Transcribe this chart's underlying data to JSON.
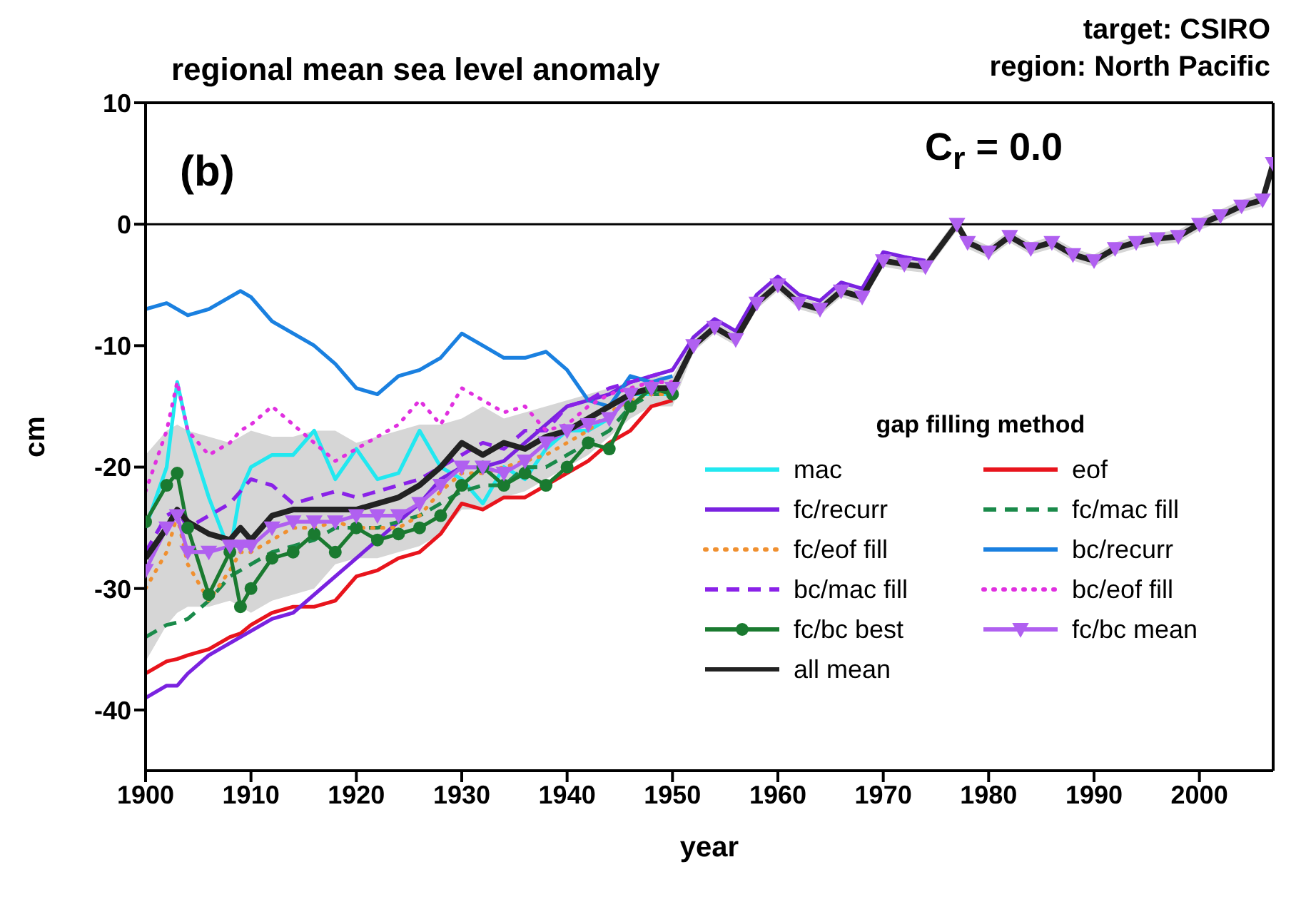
{
  "chart_data": {
    "type": "line",
    "title": "regional mean sea level anomaly",
    "xlabel": "year",
    "ylabel": "cm",
    "legend_title": "gap filling method",
    "legend": "bottom right",
    "annotations": [
      "target: CSIRO",
      "region: North Pacific",
      "(b)",
      "C$_{r}$ = 0.0"
    ],
    "x": [
      1900,
      1902,
      1903,
      1904,
      1906,
      1908,
      1909,
      1910,
      1912,
      1914,
      1916,
      1918,
      1920,
      1922,
      1924,
      1926,
      1928,
      1930,
      1932,
      1934,
      1936,
      1938,
      1940,
      1942,
      1944,
      1946,
      1948,
      1950,
      1952,
      1954,
      1956,
      1958,
      1960,
      1962,
      1964,
      1966,
      1968,
      1970,
      1972,
      1974,
      1977,
      1978,
      1980,
      1982,
      1984,
      1986,
      1988,
      1990,
      1992,
      1994,
      1996,
      1998,
      2000,
      2002,
      2004,
      2006,
      2007
    ],
    "xlim": [
      1900,
      2007
    ],
    "xticks": [
      1900,
      1910,
      1920,
      1930,
      1940,
      1950,
      1960,
      1970,
      1980,
      1990,
      2000
    ],
    "ylim": [
      -45,
      10
    ],
    "yticks": [
      -40,
      -30,
      -20,
      -10,
      0,
      10
    ],
    "ref_lines": [
      {
        "axis": "y",
        "value": 0,
        "color": "#000000"
      }
    ],
    "series": [
      {
        "name": "mac",
        "color": "#22e8f0",
        "line_style": "solid",
        "values": [
          -25,
          -20,
          -13,
          -17,
          -22.5,
          -27,
          -22,
          -20,
          -19,
          -19,
          -17,
          -21,
          -18.5,
          -21,
          -20.5,
          -17,
          -20,
          -21,
          -23,
          -20,
          -21,
          -18.5,
          -17,
          -17,
          -16,
          -14,
          -14,
          -14,
          null,
          null,
          null,
          null,
          null,
          null,
          null,
          null,
          null,
          null,
          null,
          null,
          null,
          null,
          null,
          null,
          null,
          null,
          null,
          null,
          null,
          null,
          null,
          null,
          null,
          null,
          null,
          null,
          null
        ]
      },
      {
        "name": "eof",
        "color": "#e8141c",
        "line_style": "solid",
        "values": [
          -37,
          -36,
          -35.8,
          -35.5,
          -35,
          -34,
          -33.7,
          -33,
          -32,
          -31.5,
          -31.5,
          -31,
          -29,
          -28.5,
          -27.5,
          -27,
          -25.5,
          -23,
          -23.5,
          -22.5,
          -22.5,
          -21.5,
          -20.5,
          -19.5,
          -18,
          -17,
          -15,
          -14.5,
          null,
          null,
          null,
          null,
          null,
          null,
          null,
          null,
          null,
          null,
          null,
          null,
          null,
          null,
          null,
          null,
          null,
          null,
          null,
          null,
          null,
          null,
          null,
          null,
          null,
          null,
          null,
          null,
          null
        ]
      },
      {
        "name": "fc/recurr",
        "color": "#7a22e0",
        "line_style": "solid",
        "values": [
          -39,
          -38,
          -38,
          -37,
          -35.5,
          -34.5,
          -34,
          -33.5,
          -32.5,
          -32,
          -30.5,
          -29,
          -27.5,
          -26,
          -24.5,
          -23,
          -21,
          -20,
          -20,
          -19.5,
          -18,
          -16.5,
          -15,
          -14.5,
          -14,
          -13,
          -12.5,
          -12,
          -9.3,
          -7.8,
          -8.8,
          -5.8,
          -4.3,
          -5.8,
          -6.3,
          -4.8,
          -5.3,
          -2.3,
          -2.7,
          -3,
          null,
          null,
          null,
          null,
          null,
          null,
          null,
          null,
          null,
          null,
          null,
          null,
          null,
          null,
          null,
          null,
          null
        ]
      },
      {
        "name": "fc/mac fill",
        "color": "#1a8a4a",
        "line_style": "dashed",
        "values": [
          -34,
          -33,
          -32.8,
          -32.5,
          -31,
          -29,
          -28.5,
          -28,
          -27,
          -26.5,
          -26,
          -25,
          -25,
          -25,
          -24.5,
          -24,
          -23,
          -22,
          -21.5,
          -21.5,
          -20,
          -20,
          -19,
          -18,
          -17,
          -15,
          -14,
          -14,
          null,
          null,
          null,
          null,
          null,
          null,
          null,
          null,
          null,
          null,
          null,
          null,
          null,
          null,
          null,
          null,
          null,
          null,
          null,
          null,
          null,
          null,
          null,
          null,
          null,
          null,
          null,
          null,
          null
        ]
      },
      {
        "name": "fc/eof fill",
        "color": "#f09030",
        "line_style": "dotted",
        "values": [
          -30,
          -27,
          -24,
          -28,
          -31,
          -28.5,
          -27,
          -27,
          -26,
          -25,
          -25,
          -24.5,
          -25,
          -25,
          -25,
          -24,
          -22,
          -20.5,
          -20.5,
          -20,
          -19.5,
          -19,
          -18,
          -17,
          -15.5,
          -14.5,
          -14,
          -14,
          null,
          null,
          null,
          null,
          null,
          null,
          null,
          null,
          null,
          null,
          null,
          null,
          null,
          null,
          null,
          null,
          null,
          null,
          null,
          null,
          null,
          null,
          null,
          null,
          null,
          null,
          null,
          null,
          null
        ]
      },
      {
        "name": "bc/recurr",
        "color": "#1a80e0",
        "line_style": "solid",
        "values": [
          -7,
          -6.5,
          -7,
          -7.5,
          -7,
          -6,
          -5.5,
          -6,
          -8,
          -9,
          -10,
          -11.5,
          -13.5,
          -14,
          -12.5,
          -12,
          -11,
          -9,
          -10,
          -11,
          -11,
          -10.5,
          -12,
          -14.5,
          -15,
          -12.5,
          -13,
          -12.5,
          null,
          null,
          null,
          null,
          null,
          null,
          null,
          null,
          null,
          null,
          null,
          null,
          null,
          null,
          null,
          null,
          null,
          null,
          null,
          null,
          null,
          null,
          null,
          null,
          null,
          null,
          null,
          null,
          null
        ]
      },
      {
        "name": "bc/mac fill",
        "color": "#8a22e8",
        "line_style": "dashed",
        "values": [
          -27,
          -24,
          -23.5,
          -25,
          -24,
          -23,
          -22,
          -21,
          -21.5,
          -23,
          -22.5,
          -22,
          -22.5,
          -22,
          -21.5,
          -21,
          -20,
          -19,
          -18,
          -18.5,
          -17,
          -17,
          -15,
          -14.5,
          -13.5,
          -13,
          -12.5,
          -12,
          null,
          null,
          null,
          null,
          null,
          null,
          null,
          null,
          null,
          null,
          null,
          null,
          null,
          null,
          null,
          null,
          null,
          null,
          null,
          null,
          null,
          null,
          null,
          null,
          null,
          null,
          null,
          null,
          null
        ]
      },
      {
        "name": "bc/eof fill",
        "color": "#e030e0",
        "line_style": "dotted",
        "values": [
          -22,
          -17,
          -13,
          -17,
          -19,
          -18,
          -17,
          -16.5,
          -15,
          -16.5,
          -18,
          -19.5,
          -18.5,
          -17.5,
          -16.5,
          -14.5,
          -16.5,
          -13.5,
          -14.5,
          -15.5,
          -15,
          -17,
          -16.5,
          -15,
          -14,
          -13.5,
          -13,
          -13,
          null,
          null,
          null,
          null,
          null,
          null,
          null,
          null,
          null,
          null,
          null,
          null,
          null,
          null,
          null,
          null,
          null,
          null,
          null,
          null,
          null,
          null,
          null,
          null,
          null,
          null,
          null,
          null,
          null
        ]
      },
      {
        "name": "fc/bc best",
        "color": "#1a7a30",
        "line_style": "solid",
        "marker": "circle",
        "values": [
          -24.5,
          -21.5,
          -20.5,
          -25,
          -30.5,
          -27,
          -31.5,
          -30,
          -27.5,
          -27,
          -25.5,
          -27,
          -25,
          -26,
          -25.5,
          -25,
          -24,
          -21.5,
          -20,
          -21.5,
          -20.5,
          -21.5,
          -20,
          -18,
          -18.5,
          -15,
          -13.5,
          -14,
          null,
          null,
          null,
          null,
          null,
          null,
          null,
          null,
          null,
          null,
          null,
          null,
          null,
          null,
          null,
          null,
          null,
          null,
          null,
          null,
          null,
          null,
          null,
          null,
          null,
          null,
          null,
          null,
          null
        ]
      },
      {
        "name": "fc/bc mean",
        "color": "#b060f0",
        "line_style": "solid",
        "marker": "triangle",
        "values": [
          -28.5,
          -25,
          -24,
          -27,
          -27,
          -26.5,
          -26.5,
          -26.5,
          -25,
          -24.5,
          -24.5,
          -24.5,
          -24,
          -24,
          -24,
          -23,
          -21.5,
          -20,
          -20,
          -20.5,
          -19.5,
          -18,
          -17,
          -16.5,
          -16,
          -14,
          -13.5,
          -13.5,
          -10,
          -8.5,
          -9.5,
          -6.5,
          -5,
          -6.5,
          -7,
          -5.5,
          -6,
          -3,
          -3.3,
          -3.5,
          0,
          -1.5,
          -2.3,
          -1,
          -2,
          -1.5,
          -2.5,
          -3,
          -2,
          -1.5,
          -1.2,
          -1,
          0,
          0.7,
          1.5,
          2,
          5
        ]
      },
      {
        "name": "all mean",
        "color": "#222222",
        "line_style": "solid",
        "values": [
          -27.5,
          -25,
          -23.5,
          -24.5,
          -25.5,
          -26,
          -25,
          -26,
          -24,
          -23.5,
          -23.5,
          -23.5,
          -23.5,
          -23,
          -22.5,
          -21.5,
          -20,
          -18,
          -19,
          -18,
          -18.5,
          -17.5,
          -17,
          -16,
          -15,
          -14,
          -13.5,
          -13.5,
          -10,
          -8.5,
          -9.5,
          -6.5,
          -5,
          -6.5,
          -7,
          -5.5,
          -6,
          -3,
          -3.3,
          -3.5,
          0,
          -1.5,
          -2.3,
          -1,
          -2,
          -1.5,
          -2.5,
          -3,
          -2,
          -1.5,
          -1.2,
          -1,
          0,
          0.7,
          1.5,
          2,
          5
        ],
        "lower": [
          -36,
          -33,
          -32,
          -31.5,
          -31.5,
          -31,
          -31.5,
          -32,
          -31,
          -30.5,
          -30,
          -28,
          -27.5,
          -27.5,
          -27,
          -26.5,
          -25.5,
          -23.5,
          -23.5,
          -22.5,
          -22,
          -21,
          -20,
          -19,
          -17.5,
          -16,
          -15,
          -15,
          -10.5,
          -9,
          -10,
          -7,
          -5.5,
          -7,
          -7.5,
          -6,
          -6.5,
          -3.5,
          -3.8,
          -4,
          -0.5,
          -2,
          -2.8,
          -1.5,
          -2.5,
          -2,
          -3,
          -3.5,
          -2.5,
          -2,
          -1.7,
          -1.5,
          -0.5,
          0.2,
          1,
          1.5,
          4.5
        ],
        "upper": [
          -19,
          -17,
          -16.5,
          -17,
          -17.5,
          -18,
          -17.5,
          -17,
          -17.5,
          -17.5,
          -17,
          -17,
          -18,
          -17.5,
          -17,
          -16.5,
          -16.5,
          -16,
          -15,
          -16,
          -15.5,
          -15,
          -14.5,
          -14,
          -13.5,
          -13,
          -12.5,
          -12.5,
          -9.5,
          -8,
          -9,
          -6,
          -4.5,
          -6,
          -6.5,
          -5,
          -5.5,
          -2.5,
          -2.8,
          -3,
          0.5,
          -1,
          -1.8,
          -0.5,
          -1.5,
          -1,
          -2,
          -2.5,
          -1.5,
          -1,
          -0.7,
          -0.5,
          0.5,
          1.2,
          2,
          2.5,
          5.5
        ]
      }
    ]
  }
}
